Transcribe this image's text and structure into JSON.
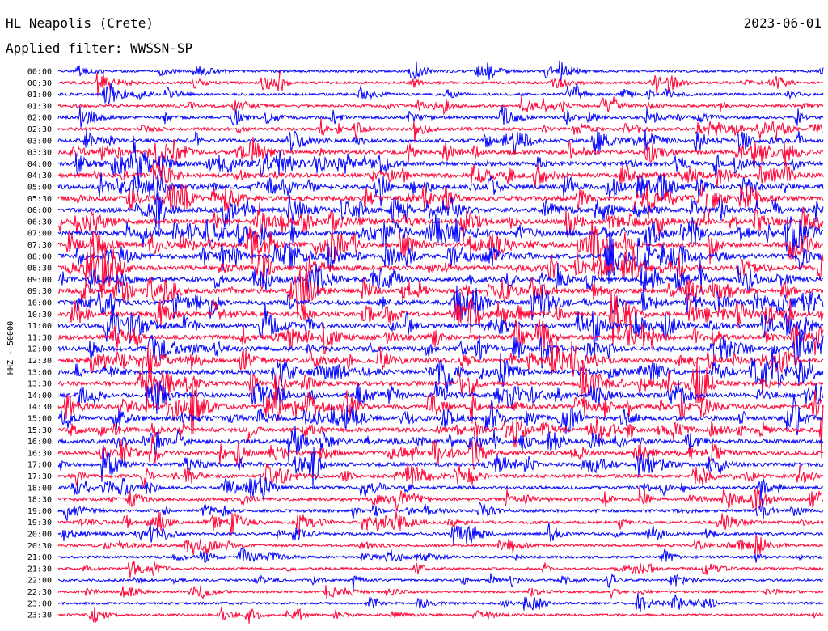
{
  "header": {
    "station": "HL Neapolis (Crete)",
    "date": "2023-06-01",
    "filter": "Applied filter: WWSSN-SP"
  },
  "colors": {
    "trace_a": "#0000ff",
    "trace_b": "#ff0033",
    "background": "#ffffff"
  },
  "chart_data": {
    "type": "line",
    "title": "HL Neapolis (Crete)",
    "ylabel": "HHZ - 50000",
    "xlabel": "",
    "grid": false,
    "legend": "none",
    "row_labels": [
      "00:00",
      "00:30",
      "01:00",
      "01:30",
      "02:00",
      "02:30",
      "03:00",
      "03:30",
      "04:00",
      "04:30",
      "05:00",
      "05:30",
      "06:00",
      "06:30",
      "07:00",
      "07:30",
      "08:00",
      "08:30",
      "09:00",
      "09:30",
      "10:00",
      "10:30",
      "11:00",
      "11:30",
      "12:00",
      "12:30",
      "13:00",
      "13:30",
      "14:00",
      "14:30",
      "15:00",
      "15:30",
      "16:00",
      "16:30",
      "17:00",
      "17:30",
      "18:00",
      "18:30",
      "19:00",
      "19:30",
      "20:00",
      "20:30",
      "21:00",
      "21:30",
      "22:00",
      "22:30",
      "23:00",
      "23:30"
    ],
    "row_activity": [
      0.3,
      0.35,
      0.35,
      0.4,
      0.45,
      0.5,
      0.6,
      0.7,
      0.75,
      0.8,
      0.9,
      0.95,
      0.95,
      0.95,
      0.95,
      0.95,
      0.95,
      0.95,
      0.9,
      0.9,
      0.9,
      0.9,
      0.9,
      0.9,
      0.9,
      0.85,
      0.85,
      0.85,
      0.85,
      0.85,
      0.8,
      0.8,
      0.75,
      0.7,
      0.65,
      0.6,
      0.55,
      0.5,
      0.45,
      0.45,
      0.4,
      0.35,
      0.35,
      0.3,
      0.3,
      0.3,
      0.3,
      0.3
    ]
  }
}
